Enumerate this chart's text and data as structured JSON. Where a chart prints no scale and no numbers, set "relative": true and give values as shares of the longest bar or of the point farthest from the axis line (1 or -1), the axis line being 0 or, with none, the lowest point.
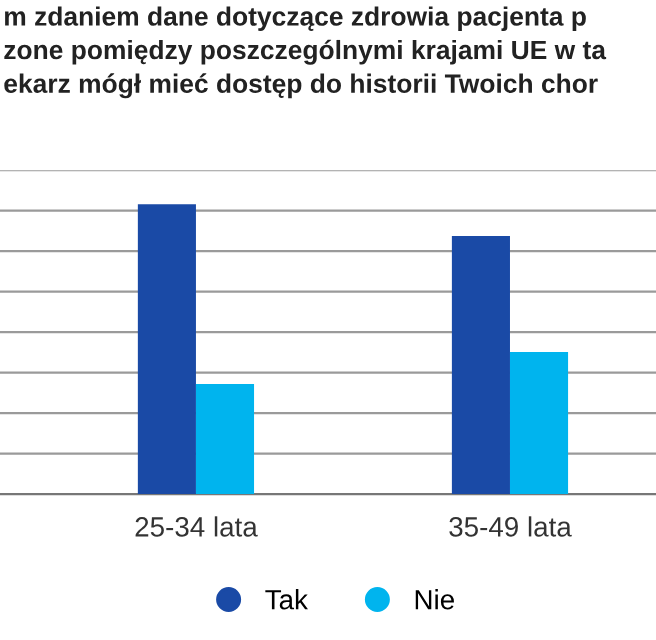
{
  "chart_data": {
    "type": "bar",
    "title": "m zdaniem dane dotyczące zdrowia pacjenta p\nzone pomiędzy poszczególnymi krajami UE w ta\nekarz mógł mieć dostęp do historii Twoich chor",
    "categories": [
      "25-34 lata",
      "35-49 lata"
    ],
    "relative": true,
    "grid": "y",
    "legend": "bottom",
    "series": [
      {
        "name": "Tak",
        "color": "#1a4aa6",
        "values": [
          1,
          0.89
        ]
      },
      {
        "name": "Nie",
        "color": "#00b4ee",
        "values": [
          0.38,
          0.49
        ]
      }
    ]
  }
}
